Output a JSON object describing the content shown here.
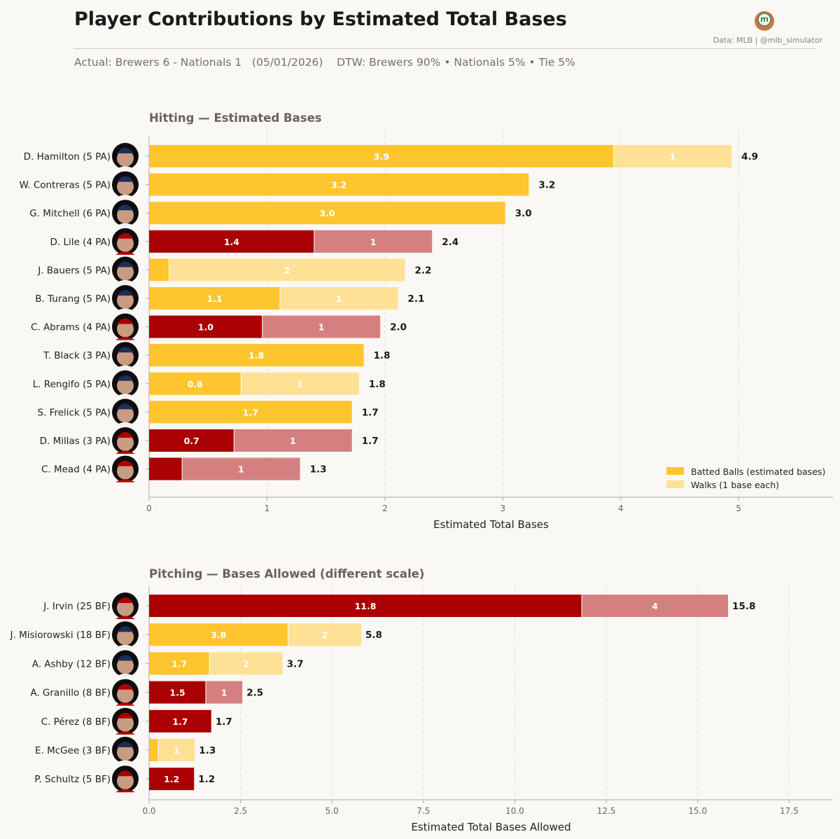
{
  "header": {
    "title": "Player Contributions by Estimated Total Bases",
    "subtitle": "Actual: Brewers 6 - Nationals 1   (05/01/2026)    DTW: Brewers 90% • Nationals 5% • Tie 5%",
    "credit": "Data: MLB  |  @mlb_simulator",
    "logo_icon": "baseball-simulator-logo"
  },
  "colors": {
    "brewers_batted": "#ffc52f",
    "brewers_walk": "#ffe195",
    "nationals_batted": "#ab0003",
    "nationals_walk": "#d58080",
    "grid": "#e3ddd3",
    "axis": "#999"
  },
  "chart_data": [
    {
      "type": "bar",
      "orientation": "horizontal",
      "stacked": true,
      "title": "Hitting  —  Estimated Bases",
      "xlabel": "Estimated Total Bases",
      "xlim": [
        0,
        5.8
      ],
      "xticks": [
        0,
        1,
        2,
        3,
        4,
        5
      ],
      "xtick_labels": [
        "0",
        "1",
        "2",
        "3",
        "4",
        "5"
      ],
      "legend": {
        "placement": "bottom-right",
        "entries": [
          "Batted Balls (estimated bases)",
          "Walks (1 base each)"
        ]
      },
      "categories": [
        "D. Hamilton  (5 PA)",
        "W. Contreras  (5 PA)",
        "G. Mitchell  (6 PA)",
        "D. Lile  (4 PA)",
        "J. Bauers  (5 PA)",
        "B. Turang  (5 PA)",
        "C. Abrams  (4 PA)",
        "T. Black  (3 PA)",
        "L. Rengifo  (5 PA)",
        "S. Frelick  (5 PA)",
        "D. Millas  (3 PA)",
        "C. Mead  (4 PA)"
      ],
      "teams": [
        "Brewers",
        "Brewers",
        "Brewers",
        "Nationals",
        "Brewers",
        "Brewers",
        "Nationals",
        "Brewers",
        "Brewers",
        "Brewers",
        "Nationals",
        "Nationals"
      ],
      "series": [
        {
          "name": "Batted Balls (estimated bases)",
          "values": [
            3.94,
            3.22,
            3.02,
            1.4,
            0.17,
            1.11,
            0.96,
            1.82,
            0.78,
            1.72,
            0.72,
            0.28
          ],
          "labels": [
            "3.9",
            "3.2",
            "3.0",
            "1.4",
            "",
            "1.1",
            "1.0",
            "1.8",
            "0.8",
            "1.7",
            "0.7",
            ""
          ]
        },
        {
          "name": "Walks (1 base each)",
          "values": [
            1,
            0,
            0,
            1,
            2,
            1,
            1,
            0,
            1,
            0,
            1,
            1
          ],
          "labels": [
            "1",
            "",
            "",
            "1",
            "2",
            "1",
            "1",
            "",
            "1",
            "",
            "1",
            "1"
          ]
        }
      ],
      "totals": [
        "4.9",
        "3.2",
        "3.0",
        "2.4",
        "2.2",
        "2.1",
        "2.0",
        "1.8",
        "1.8",
        "1.7",
        "1.7",
        "1.3"
      ]
    },
    {
      "type": "bar",
      "orientation": "horizontal",
      "stacked": true,
      "title": "Pitching  —  Bases Allowed  (different scale)",
      "xlabel": "Estimated Total Bases Allowed",
      "xlim": [
        0,
        18.7
      ],
      "xticks": [
        0,
        2.5,
        5,
        7.5,
        10,
        12.5,
        15,
        17.5
      ],
      "xtick_labels": [
        "0.0",
        "2.5",
        "5.0",
        "7.5",
        "10.0",
        "12.5",
        "15.0",
        "17.5"
      ],
      "categories": [
        "J. Irvin  (25 BF)",
        "J. Misiorowski  (18 BF)",
        "A. Ashby  (12 BF)",
        "A. Granillo  (8 BF)",
        "C. Pérez  (8 BF)",
        "E. McGee  (3 BF)",
        "P. Schultz  (5 BF)"
      ],
      "teams": [
        "Nationals",
        "Brewers",
        "Brewers",
        "Nationals",
        "Nationals",
        "Brewers",
        "Nationals"
      ],
      "series": [
        {
          "name": "Batted Balls (estimated bases)",
          "values": [
            11.83,
            3.8,
            1.65,
            1.55,
            1.7,
            0.25,
            1.23
          ],
          "labels": [
            "11.8",
            "3.8",
            "1.7",
            "1.5",
            "1.7",
            "",
            "1.2"
          ]
        },
        {
          "name": "Walks (1 base each)",
          "values": [
            4,
            2,
            2,
            1,
            0,
            1,
            0
          ],
          "labels": [
            "4",
            "2",
            "2",
            "1",
            "",
            "1",
            ""
          ]
        }
      ],
      "totals": [
        "15.8",
        "5.8",
        "3.7",
        "2.5",
        "1.7",
        "1.3",
        "1.2"
      ]
    }
  ]
}
